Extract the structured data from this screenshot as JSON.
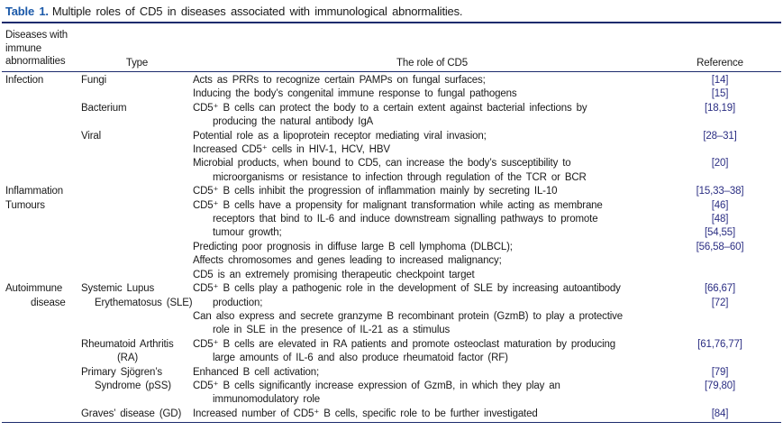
{
  "colors": {
    "rule": "#1c2b6d",
    "caption_label": "#1b59a9",
    "reference_link": "#2b2e83"
  },
  "caption": {
    "label": "Table 1.",
    "text": "Multiple roles of CD5 in diseases associated with immunological abnormalities."
  },
  "header": {
    "diseases_lines": [
      "Diseases with",
      "immune",
      "abnormalities"
    ],
    "type": "Type",
    "role": "The role of CD5",
    "reference": "Reference"
  },
  "rows": [
    {
      "d": "Infection",
      "t": "Fungi",
      "r": "Acts as PRRs to recognize certain PAMPs on fungal surfaces;",
      "ref": "[14]"
    },
    {
      "r": "Inducing the body’s congenital immune response to fungal pathogens",
      "ref": "[15]"
    },
    {
      "t": "Bacterium",
      "r": "CD5⁺ B cells can protect the body to a certain extent against bacterial infections by",
      "ref": "[18,19]"
    },
    {
      "r": "producing the natural antibody IgA",
      "ri": 1
    },
    {
      "t": "Viral",
      "r": "Potential role as a lipoprotein receptor mediating viral invasion;",
      "ref": "[28–31]"
    },
    {
      "r": "Increased CD5⁺ cells in HIV-1, HCV, HBV"
    },
    {
      "r": "Microbial products, when bound to CD5, can increase the body’s susceptibility to",
      "ref": "[20]"
    },
    {
      "r": "microorganisms or resistance to infection through regulation of the TCR or BCR",
      "ri": 1
    },
    {
      "d": "Inflammation",
      "r": "CD5⁺ B cells inhibit the progression of inflammation mainly by secreting IL-10",
      "ref": "[15,33–38]"
    },
    {
      "d": "Tumours",
      "r": "CD5⁺ B cells have a propensity for malignant transformation while acting as membrane",
      "ref": "[46]"
    },
    {
      "r": "receptors that bind to IL-6 and induce downstream signalling pathways to promote",
      "ri": 1,
      "ref": "[48]"
    },
    {
      "r": "tumour growth;",
      "ri": 1,
      "ref": "[54,55]"
    },
    {
      "r": "Predicting poor prognosis in diffuse large B cell lymphoma (DLBCL);",
      "ref": "[56,58–60]"
    },
    {
      "r": "Affects chromosomes and genes leading to increased malignancy;"
    },
    {
      "r": "CD5 is an extremely promising therapeutic checkpoint target"
    },
    {
      "d": "Autoimmune",
      "t": "Systemic Lupus",
      "r": "CD5⁺ B cells play a pathogenic role in the development of SLE by increasing autoantibody",
      "ref": "[66,67]"
    },
    {
      "d": "disease",
      "di": 1,
      "t": "Erythematosus (SLE)",
      "ti": 1,
      "r": "production;",
      "ri": 1,
      "ref": "[72]"
    },
    {
      "r": "Can also express and secrete granzyme B recombinant protein (GzmB) to play a protective"
    },
    {
      "r": "role in SLE in the presence of IL-21 as a stimulus",
      "ri": 1
    },
    {
      "t": "Rheumatoid Arthritis",
      "r": "CD5⁺ B cells are elevated in RA patients and promote osteoclast maturation by producing",
      "ref": "[61,76,77]"
    },
    {
      "t": "(RA)",
      "ti": 2,
      "r": "large amounts of IL-6 and also produce rheumatoid factor (RF)",
      "ri": 1
    },
    {
      "t": "Primary Sjögren’s",
      "r": "Enhanced B cell activation;",
      "ref": "[79]"
    },
    {
      "t": "Syndrome (pSS)",
      "ti": 1,
      "r": "CD5⁺ B cells significantly increase expression of GzmB, in which they play an",
      "ref": "[79,80]"
    },
    {
      "r": "immunomodulatory role",
      "ri": 1
    },
    {
      "t": "Graves’ disease (GD)",
      "r": "Increased number of CD5⁺ B cells, specific role to be further investigated",
      "ref": "[84]"
    }
  ]
}
